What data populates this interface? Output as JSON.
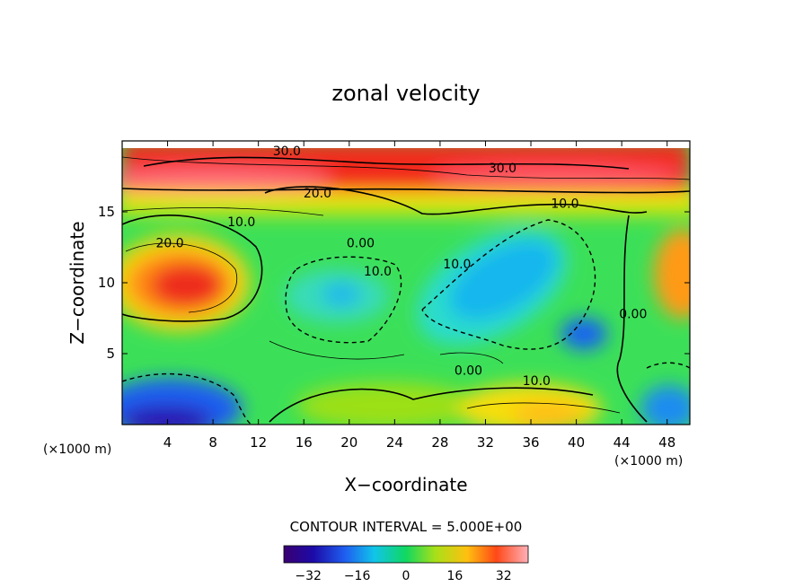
{
  "chart_data": {
    "type": "heatmap",
    "title": "zonal velocity",
    "xlabel": "X−coordinate",
    "ylabel": "Z−coordinate",
    "x_unit_left": "(×1000 m)",
    "x_unit_right": "(×1000 m)",
    "xlim": [
      0,
      50
    ],
    "ylim": [
      0,
      20
    ],
    "x_ticks": [
      "4",
      "8",
      "12",
      "16",
      "20",
      "24",
      "28",
      "32",
      "36",
      "40",
      "44",
      "48"
    ],
    "x_tick_values": [
      4,
      8,
      12,
      16,
      20,
      24,
      28,
      32,
      36,
      40,
      44,
      48
    ],
    "y_ticks": [
      "5",
      "10",
      "15"
    ],
    "y_tick_values": [
      5,
      10,
      15
    ],
    "contour_interval_text": "CONTOUR INTERVAL = 5.000E+00",
    "contour_labels": [
      {
        "text": "30.0",
        "x": 14.5,
        "y": 19.0
      },
      {
        "text": "30.0",
        "x": 33.5,
        "y": 17.8
      },
      {
        "text": "20.0",
        "x": 17.2,
        "y": 16.0
      },
      {
        "text": "10.0",
        "x": 10.5,
        "y": 14.0
      },
      {
        "text": "20.0",
        "x": 4.2,
        "y": 12.5
      },
      {
        "text": "0.00",
        "x": 21.0,
        "y": 12.5
      },
      {
        "text": "10.0",
        "x": 22.5,
        "y": 10.5
      },
      {
        "text": "10.0",
        "x": 29.5,
        "y": 11.0
      },
      {
        "text": "10.0",
        "x": 39.0,
        "y": 15.3
      },
      {
        "text": "0.00",
        "x": 45.0,
        "y": 7.5
      },
      {
        "text": "0.00",
        "x": 30.5,
        "y": 3.5
      },
      {
        "text": "10.0",
        "x": 36.5,
        "y": 2.8
      }
    ],
    "colorbar": {
      "range": [
        -40,
        40
      ],
      "ticks": [
        "−32",
        "−16",
        "0",
        "16",
        "32"
      ],
      "tick_values": [
        -32,
        -16,
        0,
        16,
        32
      ]
    }
  }
}
